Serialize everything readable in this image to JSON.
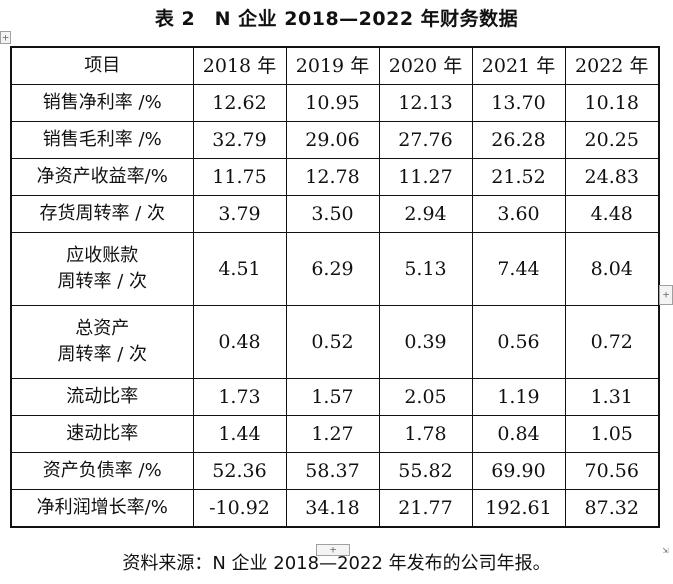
{
  "caption": "表 2　N 企业 2018—2022 年财务数据",
  "header": {
    "item": "项目",
    "years": [
      "2018 年",
      "2019 年",
      "2020 年",
      "2021 年",
      "2022 年"
    ]
  },
  "rows": [
    {
      "lines": [
        "销售净利率 /%"
      ],
      "values": [
        "12.62",
        "10.95",
        "12.13",
        "13.70",
        "10.18"
      ]
    },
    {
      "lines": [
        "销售毛利率 /%"
      ],
      "values": [
        "32.79",
        "29.06",
        "27.76",
        "26.28",
        "20.25"
      ]
    },
    {
      "lines": [
        "净资产收益率/%"
      ],
      "values": [
        "11.75",
        "12.78",
        "11.27",
        "21.52",
        "24.83"
      ]
    },
    {
      "lines": [
        "存货周转率 / 次"
      ],
      "values": [
        "3.79",
        "3.50",
        "2.94",
        "3.60",
        "4.48"
      ]
    },
    {
      "lines": [
        "应收账款",
        "周转率 / 次"
      ],
      "values": [
        "4.51",
        "6.29",
        "5.13",
        "7.44",
        "8.04"
      ]
    },
    {
      "lines": [
        "总资产",
        "周转率 / 次"
      ],
      "values": [
        "0.48",
        "0.52",
        "0.39",
        "0.56",
        "0.72"
      ]
    },
    {
      "lines": [
        "流动比率"
      ],
      "values": [
        "1.73",
        "1.57",
        "2.05",
        "1.19",
        "1.31"
      ]
    },
    {
      "lines": [
        "速动比率"
      ],
      "values": [
        "1.44",
        "1.27",
        "1.78",
        "0.84",
        "1.05"
      ]
    },
    {
      "lines": [
        "资产负债率 /%"
      ],
      "values": [
        "52.36",
        "58.37",
        "55.82",
        "69.90",
        "70.56"
      ]
    },
    {
      "lines": [
        "净利润增长率/%"
      ],
      "values": [
        "-10.92",
        "34.18",
        "21.77",
        "192.61",
        "87.32"
      ]
    }
  ],
  "footer": "资料来源：N 企业 2018—2022 年发布的公司年报。",
  "handles": {
    "move_glyph": "+",
    "add_col_glyph": "+",
    "add_row_glyph": "+",
    "resize_glyph": "⇲"
  }
}
